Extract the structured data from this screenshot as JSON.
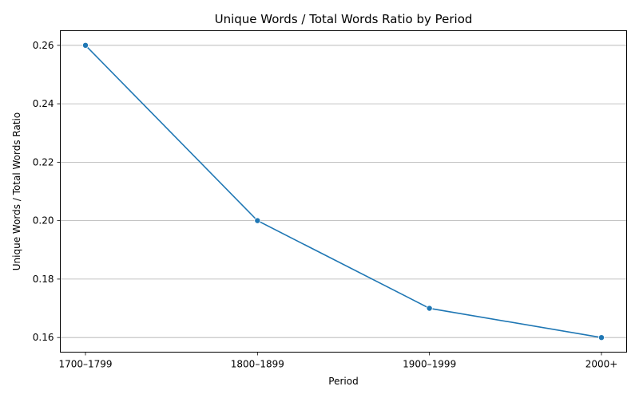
{
  "chart_data": {
    "type": "line",
    "title": "Unique Words / Total Words Ratio by Period",
    "xlabel": "Period",
    "ylabel": "Unique Words / Total Words Ratio",
    "categories": [
      "1700–1799",
      "1800–1899",
      "1900–1999",
      "2000+"
    ],
    "series": [
      {
        "values": [
          0.26,
          0.2,
          0.17,
          0.16
        ],
        "color": "#1f77b4",
        "marker": "circle"
      }
    ],
    "ylim": [
      0.155,
      0.265
    ],
    "yticks": [
      0.16,
      0.18,
      0.2,
      0.22,
      0.24,
      0.26
    ],
    "ytick_labels": [
      "0.16",
      "0.18",
      "0.20",
      "0.22",
      "0.24",
      "0.26"
    ],
    "grid": "horizontal",
    "grid_color": "#b0b0b0",
    "legend": "none"
  }
}
